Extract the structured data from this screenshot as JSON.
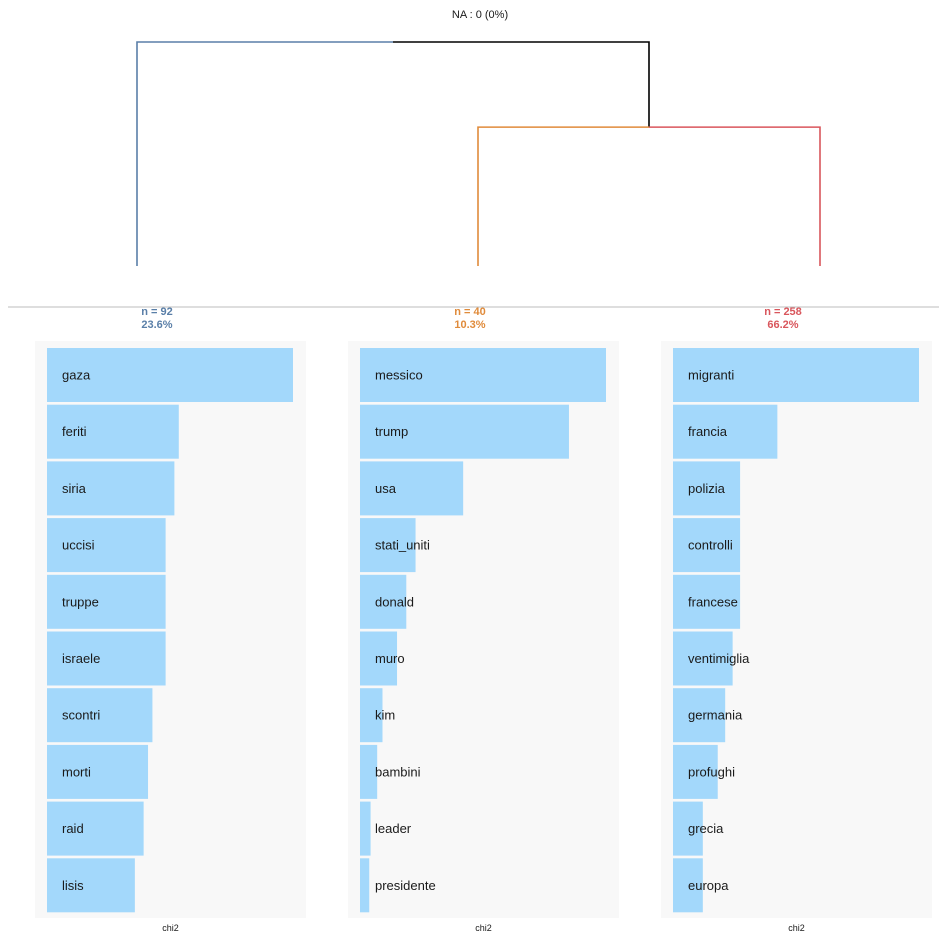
{
  "header": {
    "na_label": "NA : 0 (0%)"
  },
  "colors": {
    "cluster_1": "#5a7fa8",
    "cluster_2": "#e08b3b",
    "cluster_3": "#d9565c",
    "root": "#000000",
    "bar": "#a3d8fb",
    "panel_bg": "#f8f8f8",
    "separator": "#bdbdbd"
  },
  "chart_data": [
    {
      "type": "dendrogram",
      "clusters": [
        {
          "id": 1,
          "n_label": "n = 92",
          "pct_label": "23.6%"
        },
        {
          "id": 2,
          "n_label": "n = 40",
          "pct_label": "10.3%"
        },
        {
          "id": 3,
          "n_label": "n = 258",
          "pct_label": "66.2%"
        }
      ],
      "merges": [
        {
          "left": 2,
          "right": 3,
          "height": 0.62
        },
        {
          "left": 1,
          "right": "2+3",
          "height": 1.0
        }
      ]
    },
    {
      "type": "bar",
      "orientation": "horizontal",
      "cluster": 1,
      "xlabel": "chi2",
      "categories": [
        "gaza",
        "feriti",
        "siria",
        "uccisi",
        "truppe",
        "israele",
        "scontri",
        "morti",
        "raid",
        "lisis"
      ],
      "values": [
        28,
        15,
        14.5,
        13.5,
        13.5,
        13.5,
        12,
        11.5,
        11,
        10
      ]
    },
    {
      "type": "bar",
      "orientation": "horizontal",
      "cluster": 2,
      "xlabel": "chi2",
      "categories": [
        "messico",
        "trump",
        "usa",
        "stati_uniti",
        "donald",
        "muro",
        "kim",
        "bambini",
        "leader",
        "presidente"
      ],
      "values": [
        93,
        79,
        39,
        21,
        17.5,
        14,
        8.5,
        6.5,
        4,
        3.5
      ]
    },
    {
      "type": "bar",
      "orientation": "horizontal",
      "cluster": 3,
      "xlabel": "chi2",
      "categories": [
        "migranti",
        "francia",
        "polizia",
        "controlli",
        "francese",
        "ventimiglia",
        "germania",
        "profughi",
        "grecia",
        "europa"
      ],
      "values": [
        16.5,
        7,
        4.5,
        4.5,
        4.5,
        4,
        3.5,
        3,
        2,
        2
      ]
    }
  ]
}
